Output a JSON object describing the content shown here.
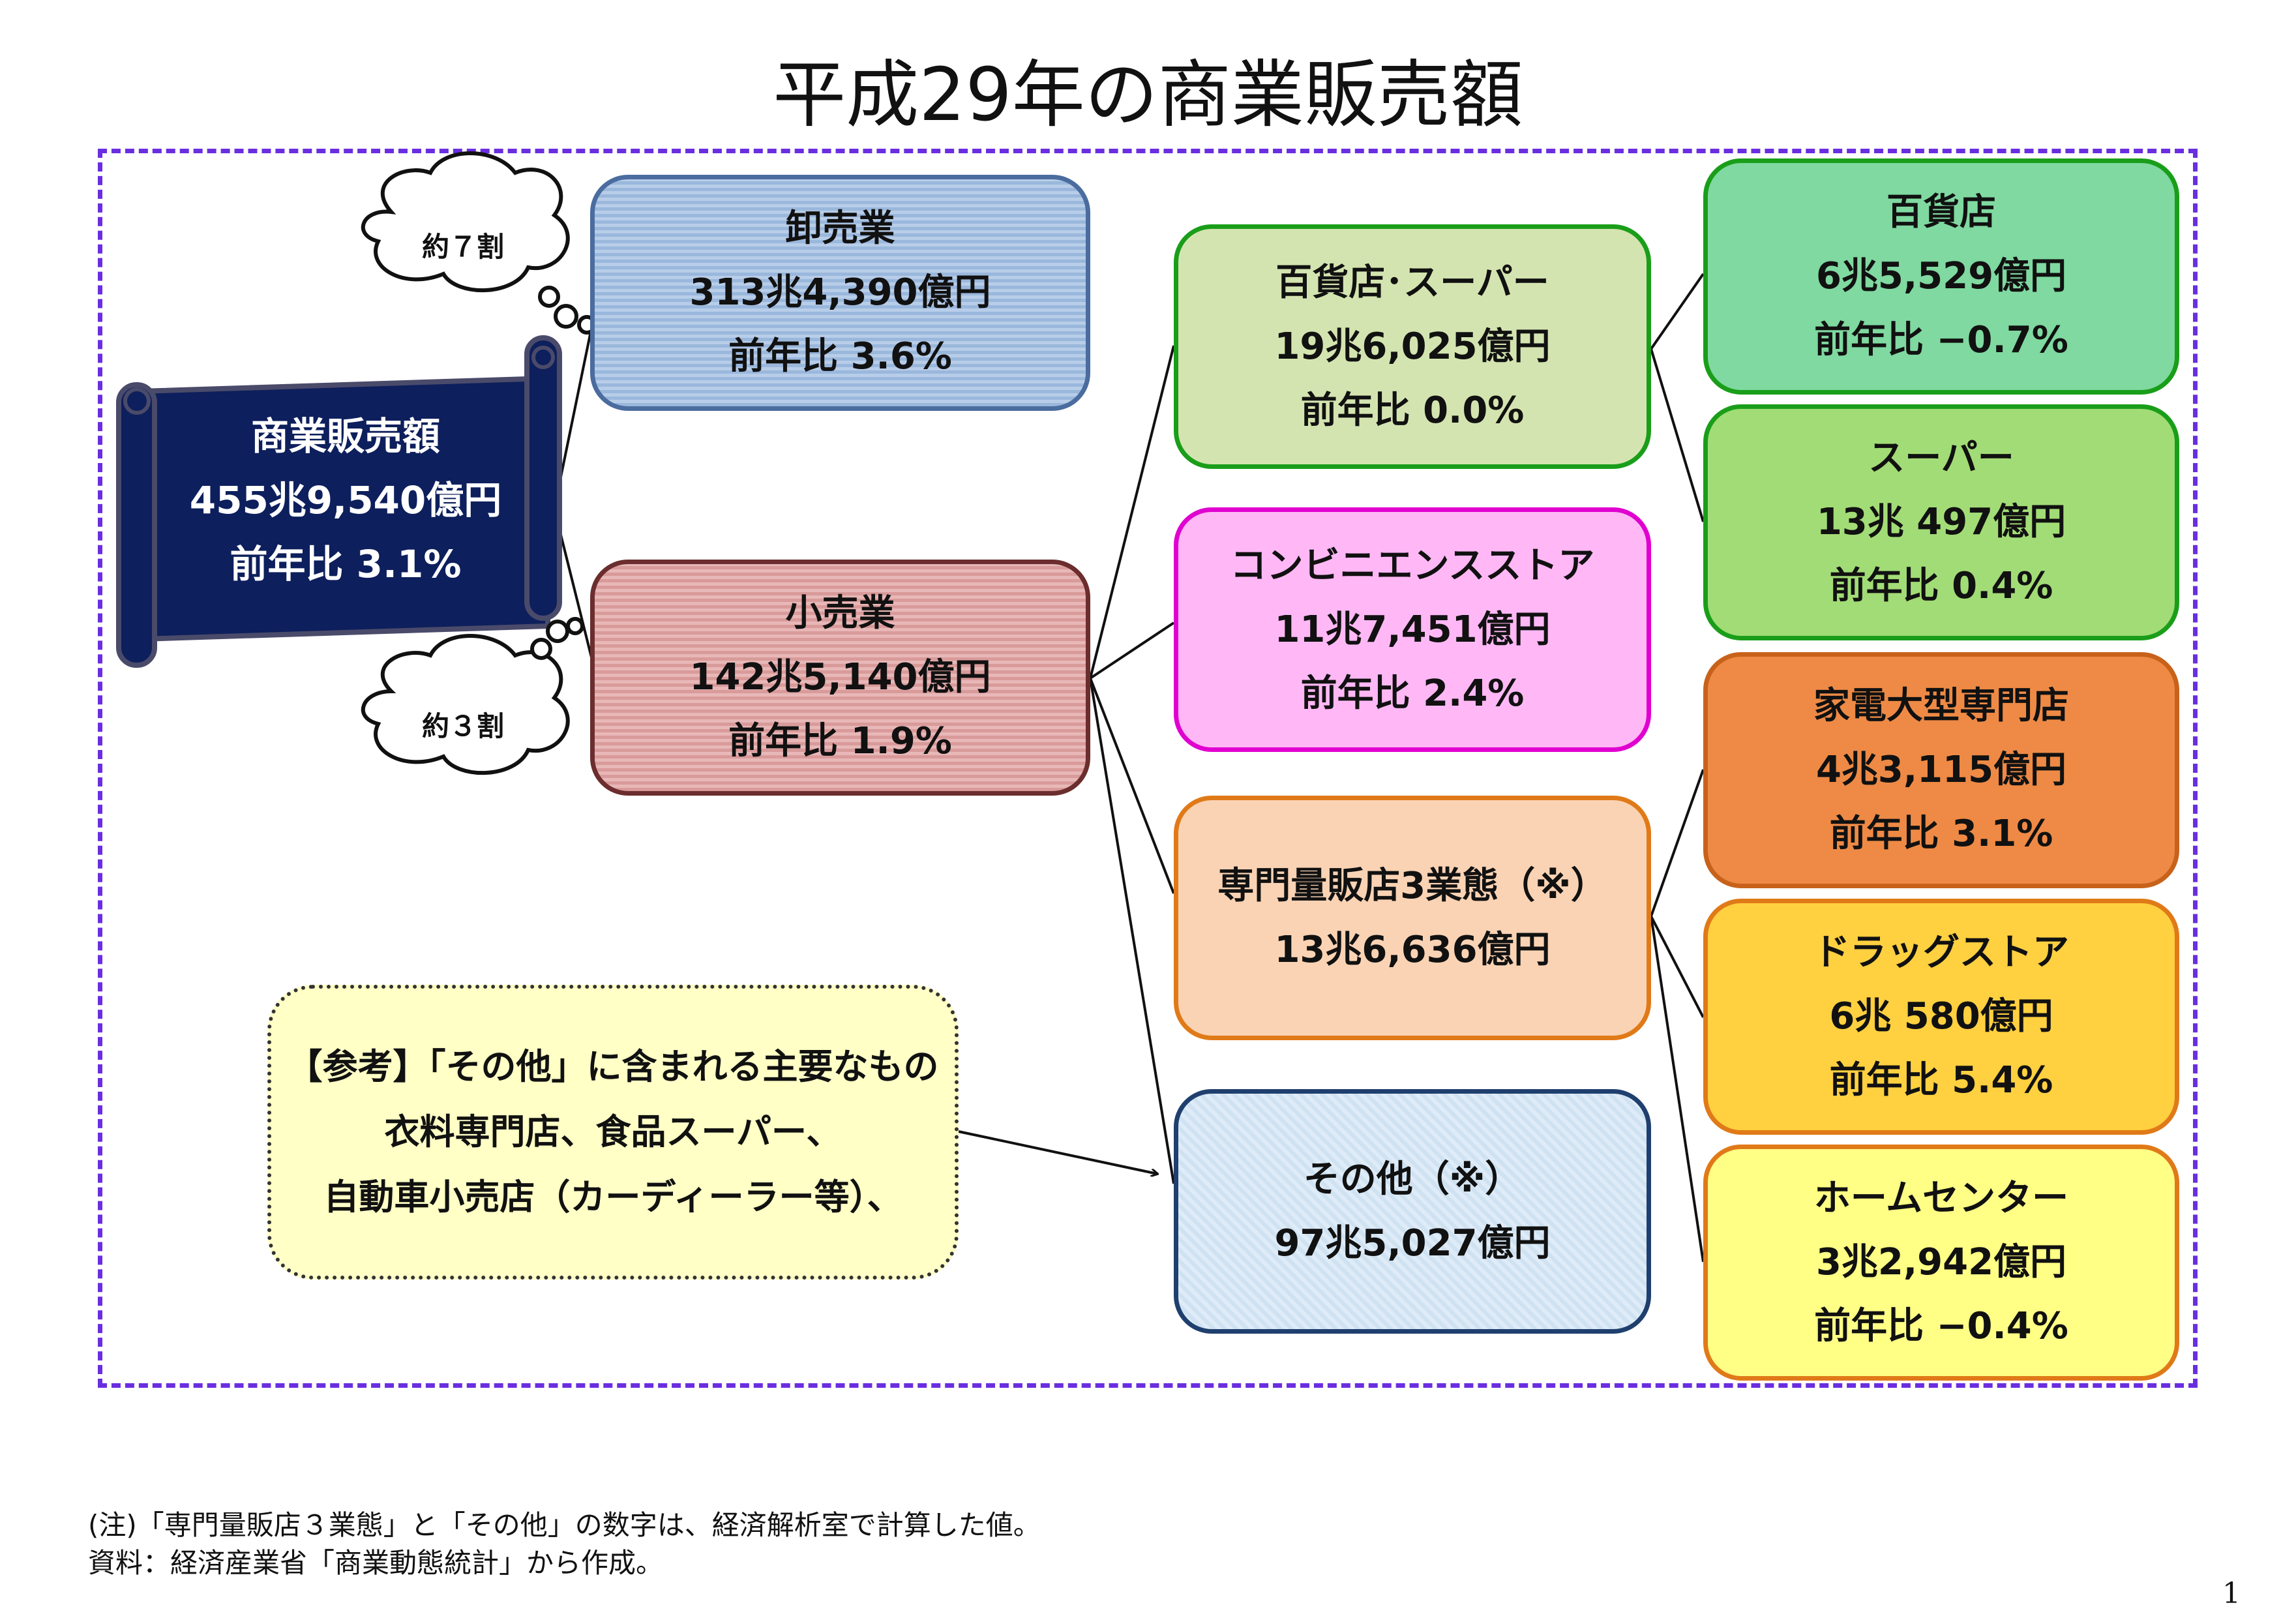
{
  "title": "平成29年の商業販売額",
  "total": {
    "label": "商業販売額",
    "amount": "455兆9,540億円",
    "yoy": "前年比  3.1%"
  },
  "share_wholesale": "約７割",
  "share_retail": "約３割",
  "wholesale": {
    "label": "卸売業",
    "amount": "313兆4,390億円",
    "yoy": "前年比 3.6%"
  },
  "retail": {
    "label": "小売業",
    "amount": "142兆5,140億円",
    "yoy": "前年比 1.9%"
  },
  "dept_super": {
    "label": "百貨店･スーパー",
    "amount": "19兆6,025億円",
    "yoy": "前年比 0.0%"
  },
  "convenience": {
    "label": "コンビニエンスストア",
    "amount": "11兆7,451億円",
    "yoy": "前年比 2.4%"
  },
  "specialty": {
    "label": "専門量販店3業態（※）",
    "amount": "13兆6,636億円"
  },
  "other": {
    "label": "その他（※）",
    "amount": "97兆5,027億円"
  },
  "department_store": {
    "label": "百貨店",
    "amount": "6兆5,529億円",
    "yoy": "前年比 −0.7%"
  },
  "supermarket": {
    "label": "スーパー",
    "amount": "13兆 497億円",
    "yoy": "前年比 0.4%"
  },
  "electronics": {
    "label": "家電大型専門店",
    "amount": "4兆3,115億円",
    "yoy": "前年比 3.1%"
  },
  "drugstore": {
    "label": "ドラッグストア",
    "amount": "6兆 580億円",
    "yoy": "前年比 5.4%"
  },
  "home_center": {
    "label": "ホームセンター",
    "amount": "3兆2,942億円",
    "yoy": "前年比 −0.4%"
  },
  "reference": {
    "line1": "【参考】「その他」に含まれる主要なもの",
    "line2": "衣料専門店、食品スーパー、",
    "line3": "自動車小売店（カーディーラー等）、"
  },
  "notes": {
    "note1": "(注)「専門量販店３業態」と「その他」の数字は、経済解析室で計算した値。",
    "note2": "資料：経済産業省「商業動態統計」から作成。"
  },
  "page_number": "1"
}
